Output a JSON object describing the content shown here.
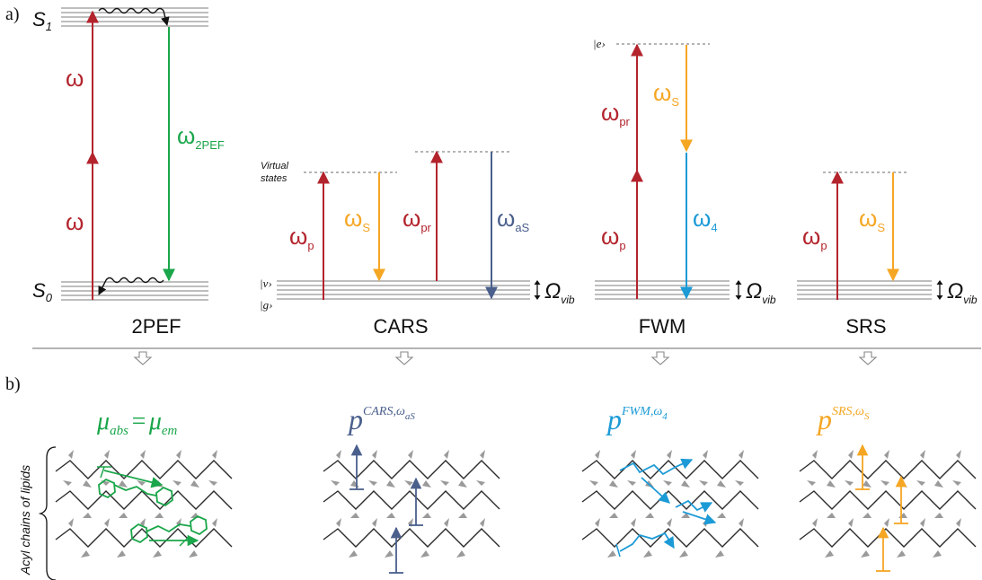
{
  "panel_a": {
    "label": "a)",
    "level_s1": "S",
    "level_s1_sub": "1",
    "level_s0": "S",
    "level_s0_sub": "0",
    "virtual_states_1": "Virtual",
    "virtual_states_2": "states",
    "ket_v": "|v›",
    "ket_g": "|g›",
    "ket_e": "|e›",
    "omega": "ω",
    "sub_2pef": "2PEF",
    "sub_p": "p",
    "sub_s": "S",
    "sub_pr": "pr",
    "sub_as": "aS",
    "sub_4": "4",
    "big_omega": "Ω",
    "sub_vib": "vib",
    "names": [
      "2PEF",
      "CARS",
      "FWM",
      "SRS"
    ]
  },
  "panel_b": {
    "label": "b)",
    "side_label": "Acyl chains of lipids",
    "eq_mu": "μ",
    "eq_abs": "abs",
    "eq_equals": "=",
    "eq_em": "em",
    "p": "p",
    "cars_sup": "CARS,ω",
    "cars_sub": "aS",
    "fwm_sup": "FWM,ω",
    "fwm_sub": "4",
    "srs_sup": "SRS,ω",
    "srs_sub": "S"
  },
  "colors": {
    "red": "#b3242d",
    "green": "#1aa64a",
    "orange": "#f5a623",
    "navy": "#4a5f8c",
    "cyan": "#1b9ad6",
    "gray_level": "#a8a8a8",
    "chain": "#2b2b2b"
  }
}
